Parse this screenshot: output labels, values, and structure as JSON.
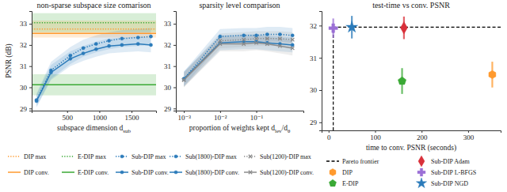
{
  "chart_data": [
    {
      "type": "line",
      "title": "non-sparse subspace size comarison",
      "xlabel": [
        "subspace dimension d",
        "sub"
      ],
      "ylabel": "PSNR (dB)",
      "xlim": [
        -50,
        1880
      ],
      "xticks": [
        500,
        1000,
        1500
      ],
      "ylim": [
        28.9,
        33.6
      ],
      "yticks": [
        29,
        30,
        31,
        32,
        33
      ],
      "legend": "bottom",
      "x": [
        25,
        250,
        550,
        750,
        950,
        1150,
        1350,
        1600,
        1800
      ],
      "series": [
        {
          "name": "DIP max",
          "color": "#ff9a2e",
          "line_style": "dotted",
          "value": 32.75,
          "std": 0.4
        },
        {
          "name": "DIP conv.",
          "color": "#ff9a2e",
          "line_style": "solid",
          "value": 32.55
        },
        {
          "name": "E-DIP max",
          "color": "#3aa935",
          "line_style": "dotted",
          "value": 33.05,
          "std": 0.45
        },
        {
          "name": "E-DIP conv.",
          "color": "#3aa935",
          "line_style": "solid",
          "value": 30.12,
          "std": 0.5
        },
        {
          "name": "Sub-DIP max",
          "color": "#2b7bba",
          "line_style": "dotted",
          "marker": "circle",
          "values": [
            29.4,
            30.8,
            31.5,
            31.85,
            32.05,
            32.2,
            32.3,
            32.35,
            32.4
          ],
          "std": [
            0.3,
            0.4,
            0.4,
            0.4,
            0.4,
            0.4,
            0.4,
            0.4,
            0.4
          ]
        },
        {
          "name": "Sub-DIP conv.",
          "color": "#2b7bba",
          "line_style": "solid",
          "marker": "circle",
          "values": [
            29.35,
            30.7,
            31.35,
            31.6,
            31.8,
            31.95,
            32.0,
            32.05,
            32.0
          ],
          "std": [
            0.3,
            0.35,
            0.35,
            0.35,
            0.35,
            0.35,
            0.35,
            0.35,
            0.35
          ]
        }
      ]
    },
    {
      "type": "line",
      "title": "sparsity level comparison",
      "xlabel": [
        "proportion of weights kept d",
        "lev",
        "/d",
        "θ"
      ],
      "log": "x",
      "xlim": [
        0.0006,
        2
      ],
      "xticks": [
        {
          "value": 0.001,
          "label": "10⁻³"
        },
        {
          "value": 0.01,
          "label": "10⁻²"
        },
        {
          "value": 0.1,
          "label": "10⁻¹"
        }
      ],
      "ylim": [
        28.9,
        33.6
      ],
      "yticks": [
        29,
        30,
        31,
        32,
        33
      ],
      "legend": "bottom",
      "x": [
        0.001,
        0.01,
        0.045,
        0.1,
        0.2,
        0.45,
        1.0
      ],
      "series": [
        {
          "name": "Sub(1800)-DIP max",
          "color": "#2b7bba",
          "line_style": "dotted",
          "marker": "circle",
          "values": [
            30.4,
            32.4,
            32.45,
            32.45,
            32.5,
            32.5,
            32.45
          ],
          "std": [
            0.35,
            0.35,
            0.35,
            0.35,
            0.35,
            0.35,
            0.35
          ]
        },
        {
          "name": "Sub(1800)-DIP conv.",
          "color": "#2b7bba",
          "line_style": "solid",
          "marker": "circle",
          "values": [
            30.4,
            32.1,
            32.15,
            32.15,
            32.1,
            32.05,
            32.0
          ],
          "std": [
            0.35,
            0.35,
            0.35,
            0.35,
            0.35,
            0.35,
            0.35
          ]
        },
        {
          "name": "Sub(1200)-DIP max",
          "color": "#8c8c8c",
          "line_style": "dotted",
          "marker": "x",
          "values": [
            30.35,
            32.2,
            32.25,
            32.3,
            32.3,
            32.3,
            32.25
          ],
          "std": [
            0.35,
            0.35,
            0.35,
            0.35,
            0.35,
            0.35,
            0.35
          ]
        },
        {
          "name": "Sub(1200)-DIP conv.",
          "color": "#8c8c8c",
          "line_style": "solid",
          "marker": "x",
          "values": [
            30.35,
            32.05,
            32.05,
            32.1,
            32.05,
            31.95,
            31.85
          ],
          "std": [
            0.35,
            0.35,
            0.35,
            0.35,
            0.35,
            0.35,
            0.35
          ]
        }
      ]
    },
    {
      "type": "scatter",
      "title": "test-time vs conv. PSNR",
      "xlabel": [
        "time to conv. PSNR (seconds)"
      ],
      "xlim": [
        -15,
        370
      ],
      "xticks": [
        0,
        100,
        200,
        300
      ],
      "ylim": [
        28.75,
        32.45
      ],
      "yticks": [
        29,
        30,
        31,
        32
      ],
      "legend": "bottom",
      "series": [
        {
          "name": "Pareto frontier",
          "type": "line",
          "color": "#000000",
          "line_style": "dashed",
          "x": [
            10,
            10,
            370
          ],
          "values": [
            28.75,
            31.95,
            31.95
          ]
        },
        {
          "name": "DIP",
          "color": "#ff9a2e",
          "marker": "hexagon",
          "x": [
            352
          ],
          "values": [
            30.48
          ],
          "error": [
            0.4
          ]
        },
        {
          "name": "E-DIP",
          "color": "#3aa935",
          "marker": "pentagon",
          "x": [
            158
          ],
          "values": [
            30.28
          ],
          "error": [
            0.4
          ]
        },
        {
          "name": "Sub-DIP Adam",
          "color": "#d9303a",
          "marker": "diamond",
          "x": [
            162
          ],
          "values": [
            31.93
          ],
          "error": [
            0.35
          ]
        },
        {
          "name": "Sub-DIP L-BFGS",
          "color": "#9b6fd6",
          "marker": "plus",
          "x": [
            10
          ],
          "values": [
            31.92
          ],
          "error": [
            0.3
          ]
        },
        {
          "name": "Sub-DIP NGD",
          "color": "#2b7bba",
          "marker": "star",
          "x": [
            50
          ],
          "values": [
            31.95
          ],
          "error": [
            0.35
          ]
        }
      ]
    }
  ]
}
